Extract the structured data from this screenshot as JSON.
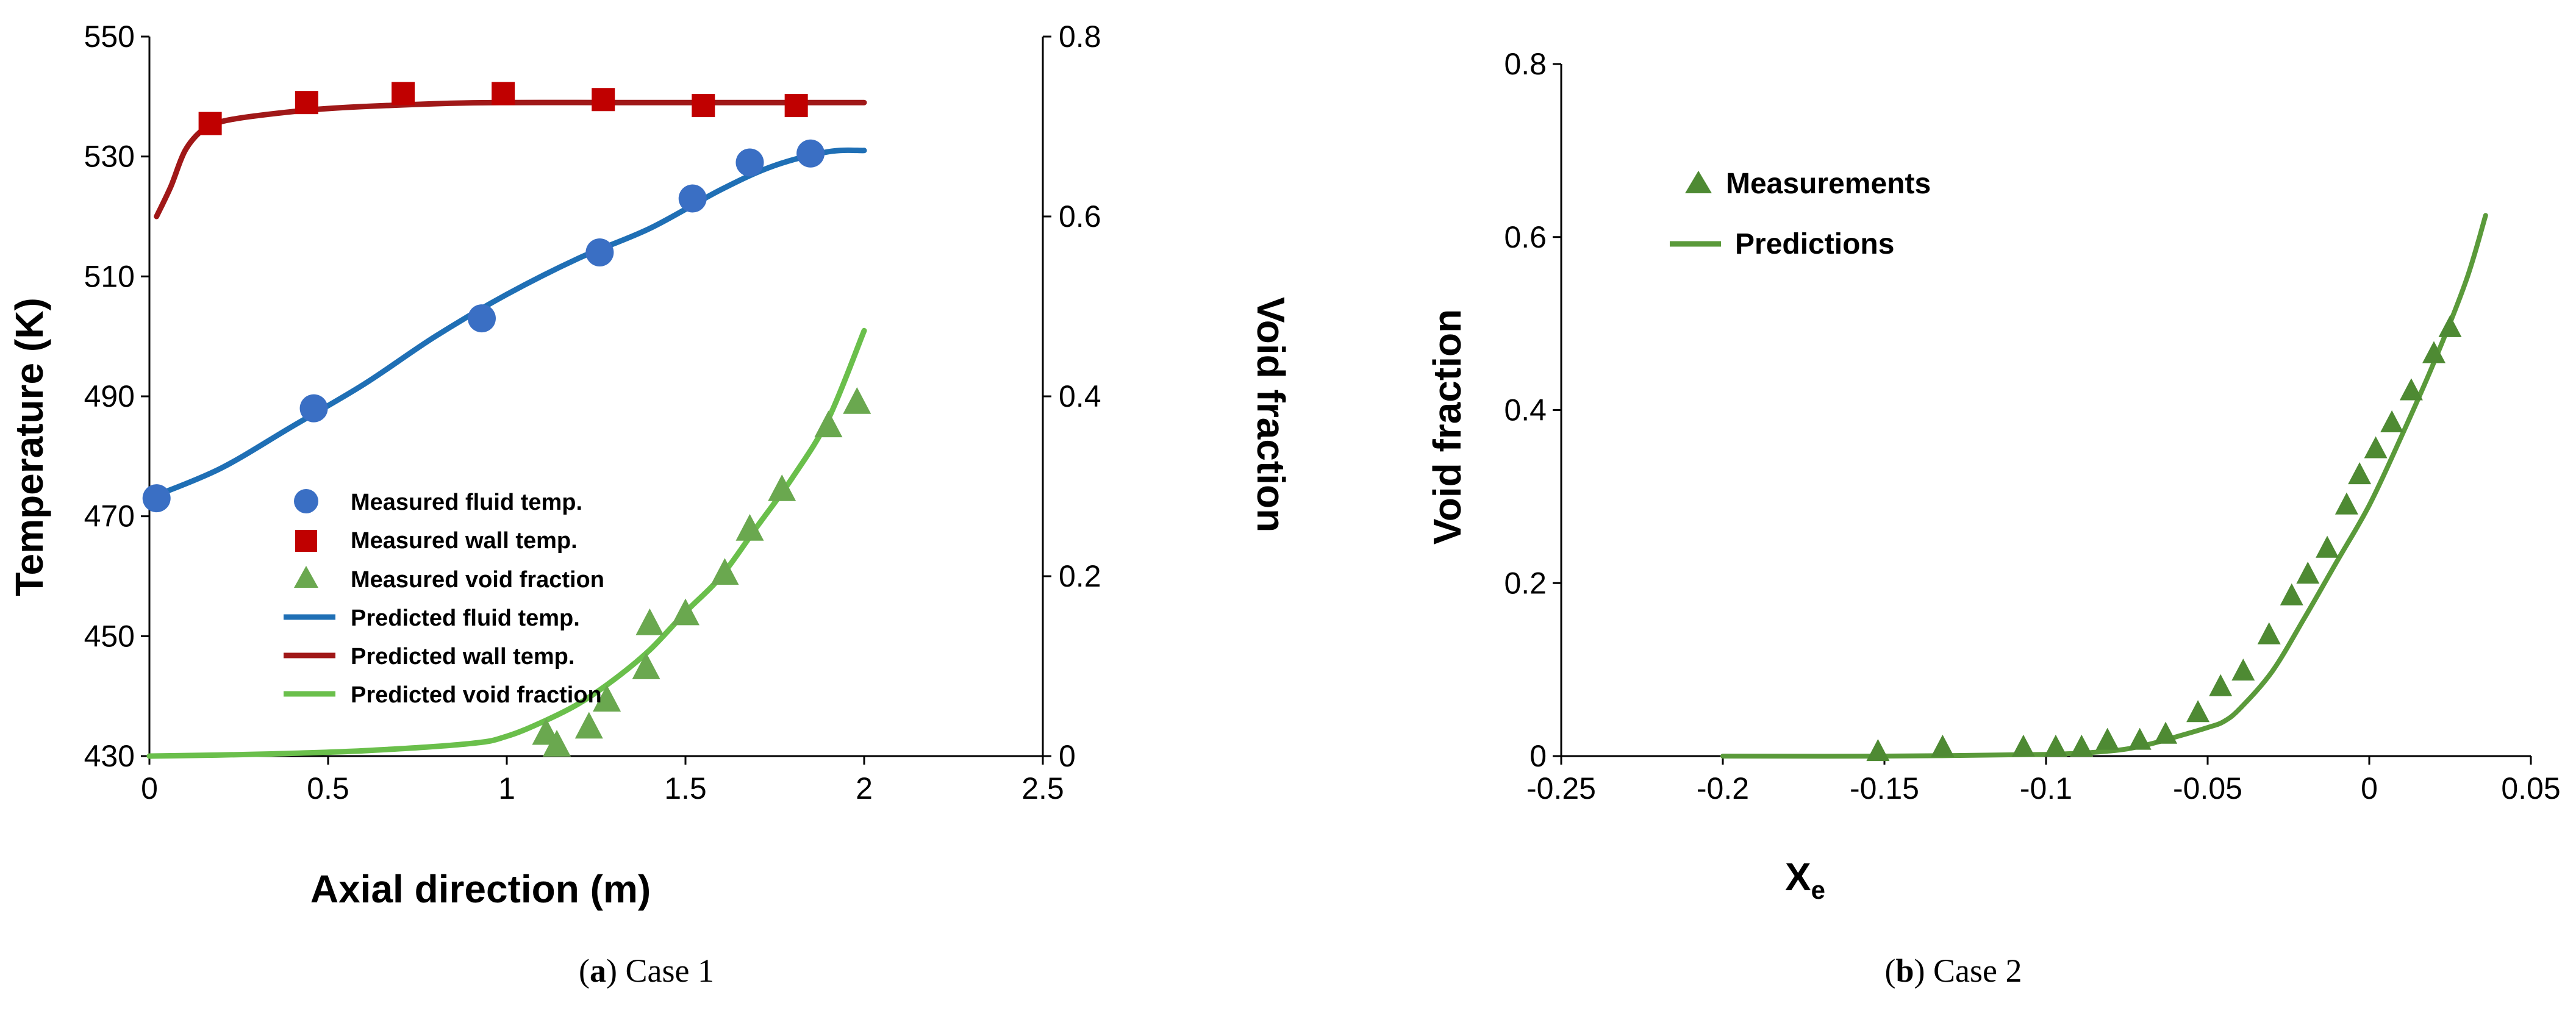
{
  "figure": {
    "captions": [
      {
        "letter": "a",
        "text": " Case 1"
      },
      {
        "letter": "b",
        "text": " Case 2"
      }
    ]
  },
  "colors": {
    "blue": "#3a6fc4",
    "blue_line": "#1f6fb5",
    "red": "#c00000",
    "red_line": "#a01818",
    "green": "#6aa84f",
    "green_line": "#6abf4b",
    "green_dark": "#4e8a33",
    "green_dark_line": "#5a9a3a"
  },
  "chart_data": [
    {
      "id": "case1",
      "type": "line",
      "title": "",
      "xlabel": "Axial direction (m)",
      "ylabel": "Temperature (K)",
      "ylabel2": "Void fraction",
      "xlim": [
        0,
        2.5
      ],
      "ylim": [
        430,
        550
      ],
      "y2lim": [
        0,
        0.8
      ],
      "xticks": [
        "0",
        "0.5",
        "1",
        "1.5",
        "2",
        "2.5"
      ],
      "yticks": [
        "430",
        "450",
        "470",
        "490",
        "510",
        "530",
        "550"
      ],
      "y2ticks": [
        "0",
        "0.2",
        "0.4",
        "0.6",
        "0.8"
      ],
      "legend_position": "lower-left",
      "legend": [
        "Measured fluid temp.",
        "Measured wall temp.",
        "Measured void fraction",
        "Predicted fluid temp.",
        "Predicted wall temp.",
        "Predicted void fraction"
      ],
      "series": [
        {
          "name": "Measured fluid temp.",
          "kind": "scatter",
          "marker": "circle",
          "axis": "left",
          "x": [
            0.02,
            0.46,
            0.93,
            1.26,
            1.52,
            1.68,
            1.85
          ],
          "y": [
            473,
            488,
            503,
            514,
            523,
            529,
            530.5
          ]
        },
        {
          "name": "Measured wall temp.",
          "kind": "scatter",
          "marker": "square",
          "axis": "left",
          "x": [
            0.17,
            0.44,
            0.71,
            0.99,
            1.27,
            1.55,
            1.81
          ],
          "y": [
            535.5,
            539,
            540.5,
            540.5,
            539.5,
            538.5,
            538.5
          ]
        },
        {
          "name": "Measured void fraction",
          "kind": "scatter",
          "marker": "triangle",
          "axis": "right",
          "x": [
            1.11,
            1.14,
            1.23,
            1.28,
            1.39,
            1.4,
            1.5,
            1.61,
            1.68,
            1.77,
            1.9,
            1.98
          ],
          "y": [
            0.025,
            0.012,
            0.032,
            0.062,
            0.098,
            0.147,
            0.158,
            0.203,
            0.252,
            0.296,
            0.367,
            0.393
          ]
        },
        {
          "name": "Predicted fluid temp.",
          "kind": "line",
          "axis": "left",
          "x": [
            0.02,
            0.2,
            0.4,
            0.6,
            0.8,
            1.0,
            1.2,
            1.4,
            1.6,
            1.75,
            1.9,
            2.0
          ],
          "y": [
            473.5,
            478,
            485,
            492,
            500,
            507,
            513,
            518,
            524.5,
            528.5,
            530.8,
            531
          ]
        },
        {
          "name": "Predicted wall temp.",
          "kind": "line",
          "axis": "left",
          "x": [
            0.02,
            0.06,
            0.1,
            0.15,
            0.2,
            0.3,
            0.5,
            0.8,
            1.0,
            1.3,
            1.6,
            2.0
          ],
          "y": [
            520,
            525,
            531,
            534.5,
            535.8,
            536.8,
            538,
            538.8,
            539,
            539,
            539,
            539
          ]
        },
        {
          "name": "Predicted void fraction",
          "kind": "line",
          "axis": "right",
          "x": [
            0.0,
            0.3,
            0.6,
            0.9,
            1.0,
            1.1,
            1.2,
            1.3,
            1.4,
            1.5,
            1.6,
            1.7,
            1.8,
            1.9,
            2.0
          ],
          "y": [
            0.0,
            0.002,
            0.006,
            0.014,
            0.022,
            0.038,
            0.058,
            0.085,
            0.118,
            0.16,
            0.2,
            0.255,
            0.31,
            0.375,
            0.473
          ]
        }
      ]
    },
    {
      "id": "case2",
      "type": "line",
      "title": "",
      "xlabel": "Xe",
      "xlabel_main": "X",
      "xlabel_sub": "e",
      "ylabel": "Void fraction",
      "xlim": [
        -0.25,
        0.05
      ],
      "ylim": [
        0,
        0.8
      ],
      "xticks": [
        "-0.25",
        "-0.2",
        "-0.15",
        "-0.1",
        "-0.05",
        "0",
        "0.05"
      ],
      "yticks": [
        "0",
        "0.2",
        "0.4",
        "0.6",
        "0.8"
      ],
      "legend_position": "top-left",
      "legend": [
        "Measurements",
        "Predictions"
      ],
      "series": [
        {
          "name": "Measurements",
          "kind": "scatter",
          "marker": "triangle",
          "x": [
            -0.152,
            -0.132,
            -0.107,
            -0.097,
            -0.089,
            -0.081,
            -0.071,
            -0.063,
            -0.053,
            -0.046,
            -0.039,
            -0.031,
            -0.024,
            -0.019,
            -0.013,
            -0.007,
            -0.003,
            0.002,
            0.007,
            0.013,
            0.02,
            0.025
          ],
          "y": [
            0.005,
            0.01,
            0.01,
            0.01,
            0.01,
            0.018,
            0.018,
            0.025,
            0.05,
            0.08,
            0.098,
            0.14,
            0.185,
            0.21,
            0.24,
            0.29,
            0.325,
            0.355,
            0.385,
            0.422,
            0.465,
            0.495
          ]
        },
        {
          "name": "Predictions",
          "kind": "line",
          "x": [
            -0.2,
            -0.15,
            -0.1,
            -0.08,
            -0.07,
            -0.06,
            -0.05,
            -0.045,
            -0.04,
            -0.03,
            -0.02,
            -0.01,
            0.0,
            0.01,
            0.02,
            0.03,
            0.036
          ],
          "y": [
            0.0,
            0.0,
            0.002,
            0.006,
            0.012,
            0.022,
            0.033,
            0.04,
            0.055,
            0.098,
            0.16,
            0.225,
            0.29,
            0.37,
            0.455,
            0.55,
            0.625
          ]
        }
      ]
    }
  ]
}
